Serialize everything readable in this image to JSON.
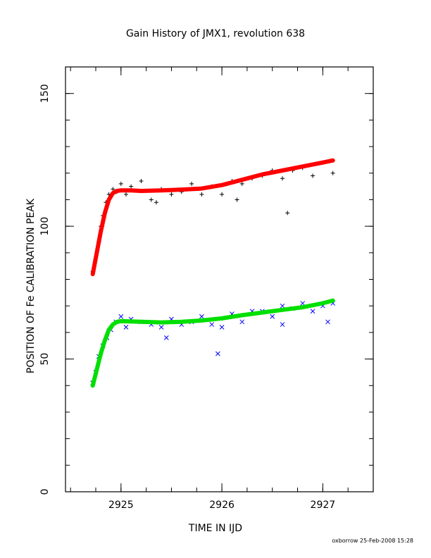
{
  "chart_data": {
    "type": "scatter",
    "title": "Gain History of JMX1, revolution 638",
    "xlabel": "TIME IN IJD",
    "ylabel": "POSITION OF Fe CALIBRATION PEAK",
    "xlim": [
      2924.45,
      2927.5
    ],
    "ylim": [
      0,
      160
    ],
    "xticks": [
      2925,
      2926,
      2927
    ],
    "xtick_labels": [
      "2925",
      "2926",
      "2927"
    ],
    "yticks": [
      0,
      50,
      100,
      150
    ],
    "ytick_labels": [
      "0",
      "50",
      "100",
      "150"
    ],
    "x_minor_step": 0.25,
    "y_minor_step": 10,
    "grid": false,
    "footer": "oxborrow 25-Feb-2008 15:28",
    "series": [
      {
        "color": "#000000",
        "marker": "plus",
        "x": [
          2924.72,
          2924.75,
          2924.78,
          2924.8,
          2924.82,
          2924.85,
          2924.88,
          2924.92,
          2924.96,
          2925.0,
          2925.05,
          2925.1,
          2925.2,
          2925.3,
          2925.4,
          2925.5,
          2925.6,
          2925.7,
          2925.8,
          2925.9,
          2926.0,
          2926.1,
          2926.2,
          2926.3,
          2926.4,
          2926.5,
          2926.6,
          2926.7,
          2926.8,
          2926.9,
          2927.0,
          2927.1,
          2926.65,
          2926.15,
          2925.35
        ],
        "y": [
          83,
          88,
          94,
          100,
          104,
          109,
          112,
          114,
          113,
          116,
          112,
          115,
          117,
          110,
          114,
          112,
          113,
          116,
          112,
          115,
          112,
          117,
          116,
          118,
          119,
          121,
          118,
          121,
          122,
          119,
          124,
          120,
          105,
          110,
          109
        ]
      },
      {
        "color": "#ff0000",
        "marker": "line",
        "x": [
          2924.72,
          2924.76,
          2924.8,
          2924.84,
          2924.88,
          2924.92,
          2924.96,
          2925.0,
          2925.1,
          2925.2,
          2925.4,
          2925.6,
          2925.8,
          2926.0,
          2926.2,
          2926.4,
          2926.6,
          2926.8,
          2927.0,
          2927.1
        ],
        "y": [
          82,
          90,
          98,
          105,
          110,
          112.5,
          113.3,
          113.5,
          113.5,
          113.3,
          113.5,
          113.8,
          114.2,
          115.5,
          117.5,
          119.5,
          121.0,
          122.5,
          124.0,
          124.8
        ]
      },
      {
        "color": "#0000ff",
        "marker": "cross",
        "x": [
          2924.72,
          2924.75,
          2924.78,
          2924.82,
          2924.86,
          2924.9,
          2924.95,
          2925.0,
          2925.05,
          2925.1,
          2925.2,
          2925.3,
          2925.4,
          2925.5,
          2925.6,
          2925.7,
          2925.8,
          2925.9,
          2925.96,
          2926.0,
          2926.1,
          2926.2,
          2926.3,
          2926.4,
          2926.5,
          2926.6,
          2926.7,
          2926.8,
          2926.9,
          2927.0,
          2927.05,
          2927.1,
          2925.45,
          2926.6
        ],
        "y": [
          41,
          45,
          51,
          55,
          58,
          61,
          64,
          66,
          62,
          65,
          64,
          63,
          62,
          65,
          63,
          64,
          66,
          63,
          52,
          62,
          67,
          64,
          68,
          68,
          66,
          70,
          69,
          71,
          68,
          70,
          64,
          71,
          58,
          63
        ]
      },
      {
        "color": "#00e000",
        "marker": "line",
        "x": [
          2924.72,
          2924.76,
          2924.8,
          2924.84,
          2924.88,
          2924.92,
          2924.96,
          2925.0,
          2925.2,
          2925.4,
          2925.6,
          2925.8,
          2926.0,
          2926.2,
          2926.4,
          2926.6,
          2926.8,
          2927.0,
          2927.1
        ],
        "y": [
          40,
          46,
          52,
          57,
          61,
          63,
          64,
          64.3,
          64,
          63.8,
          64,
          64.5,
          65.3,
          66.5,
          67.5,
          68.5,
          69.5,
          71,
          72
        ]
      }
    ]
  }
}
